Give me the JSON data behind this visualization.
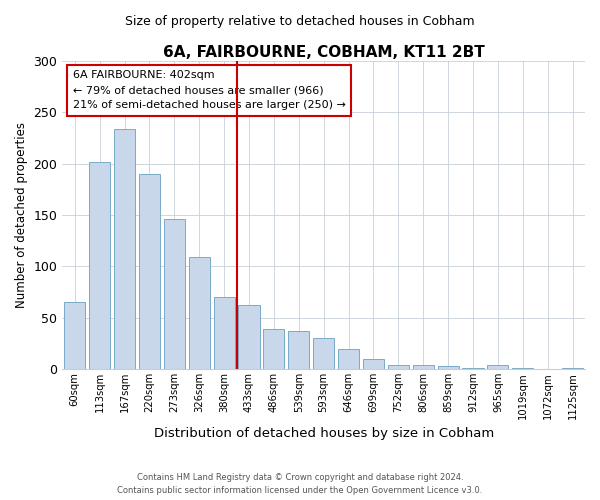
{
  "title": "6A, FAIRBOURNE, COBHAM, KT11 2BT",
  "subtitle": "Size of property relative to detached houses in Cobham",
  "xlabel": "Distribution of detached houses by size in Cobham",
  "ylabel": "Number of detached properties",
  "bar_labels": [
    "60sqm",
    "113sqm",
    "167sqm",
    "220sqm",
    "273sqm",
    "326sqm",
    "380sqm",
    "433sqm",
    "486sqm",
    "539sqm",
    "593sqm",
    "646sqm",
    "699sqm",
    "752sqm",
    "806sqm",
    "859sqm",
    "912sqm",
    "965sqm",
    "1019sqm",
    "1072sqm",
    "1125sqm"
  ],
  "bar_values": [
    65,
    202,
    234,
    190,
    146,
    109,
    70,
    62,
    39,
    37,
    30,
    20,
    10,
    4,
    4,
    3,
    1,
    4,
    1,
    0,
    1
  ],
  "bar_color": "#c8d8ea",
  "bar_edge_color": "#7aaaca",
  "vline_x_index": 6.5,
  "vline_color": "#cc0000",
  "annotation_title": "6A FAIRBOURNE: 402sqm",
  "annotation_line1": "← 79% of detached houses are smaller (966)",
  "annotation_line2": "21% of semi-detached houses are larger (250) →",
  "annotation_box_color": "#ffffff",
  "annotation_box_edge": "#cc0000",
  "ylim": [
    0,
    300
  ],
  "yticks": [
    0,
    50,
    100,
    150,
    200,
    250,
    300
  ],
  "footer1": "Contains HM Land Registry data © Crown copyright and database right 2024.",
  "footer2": "Contains public sector information licensed under the Open Government Licence v3.0."
}
